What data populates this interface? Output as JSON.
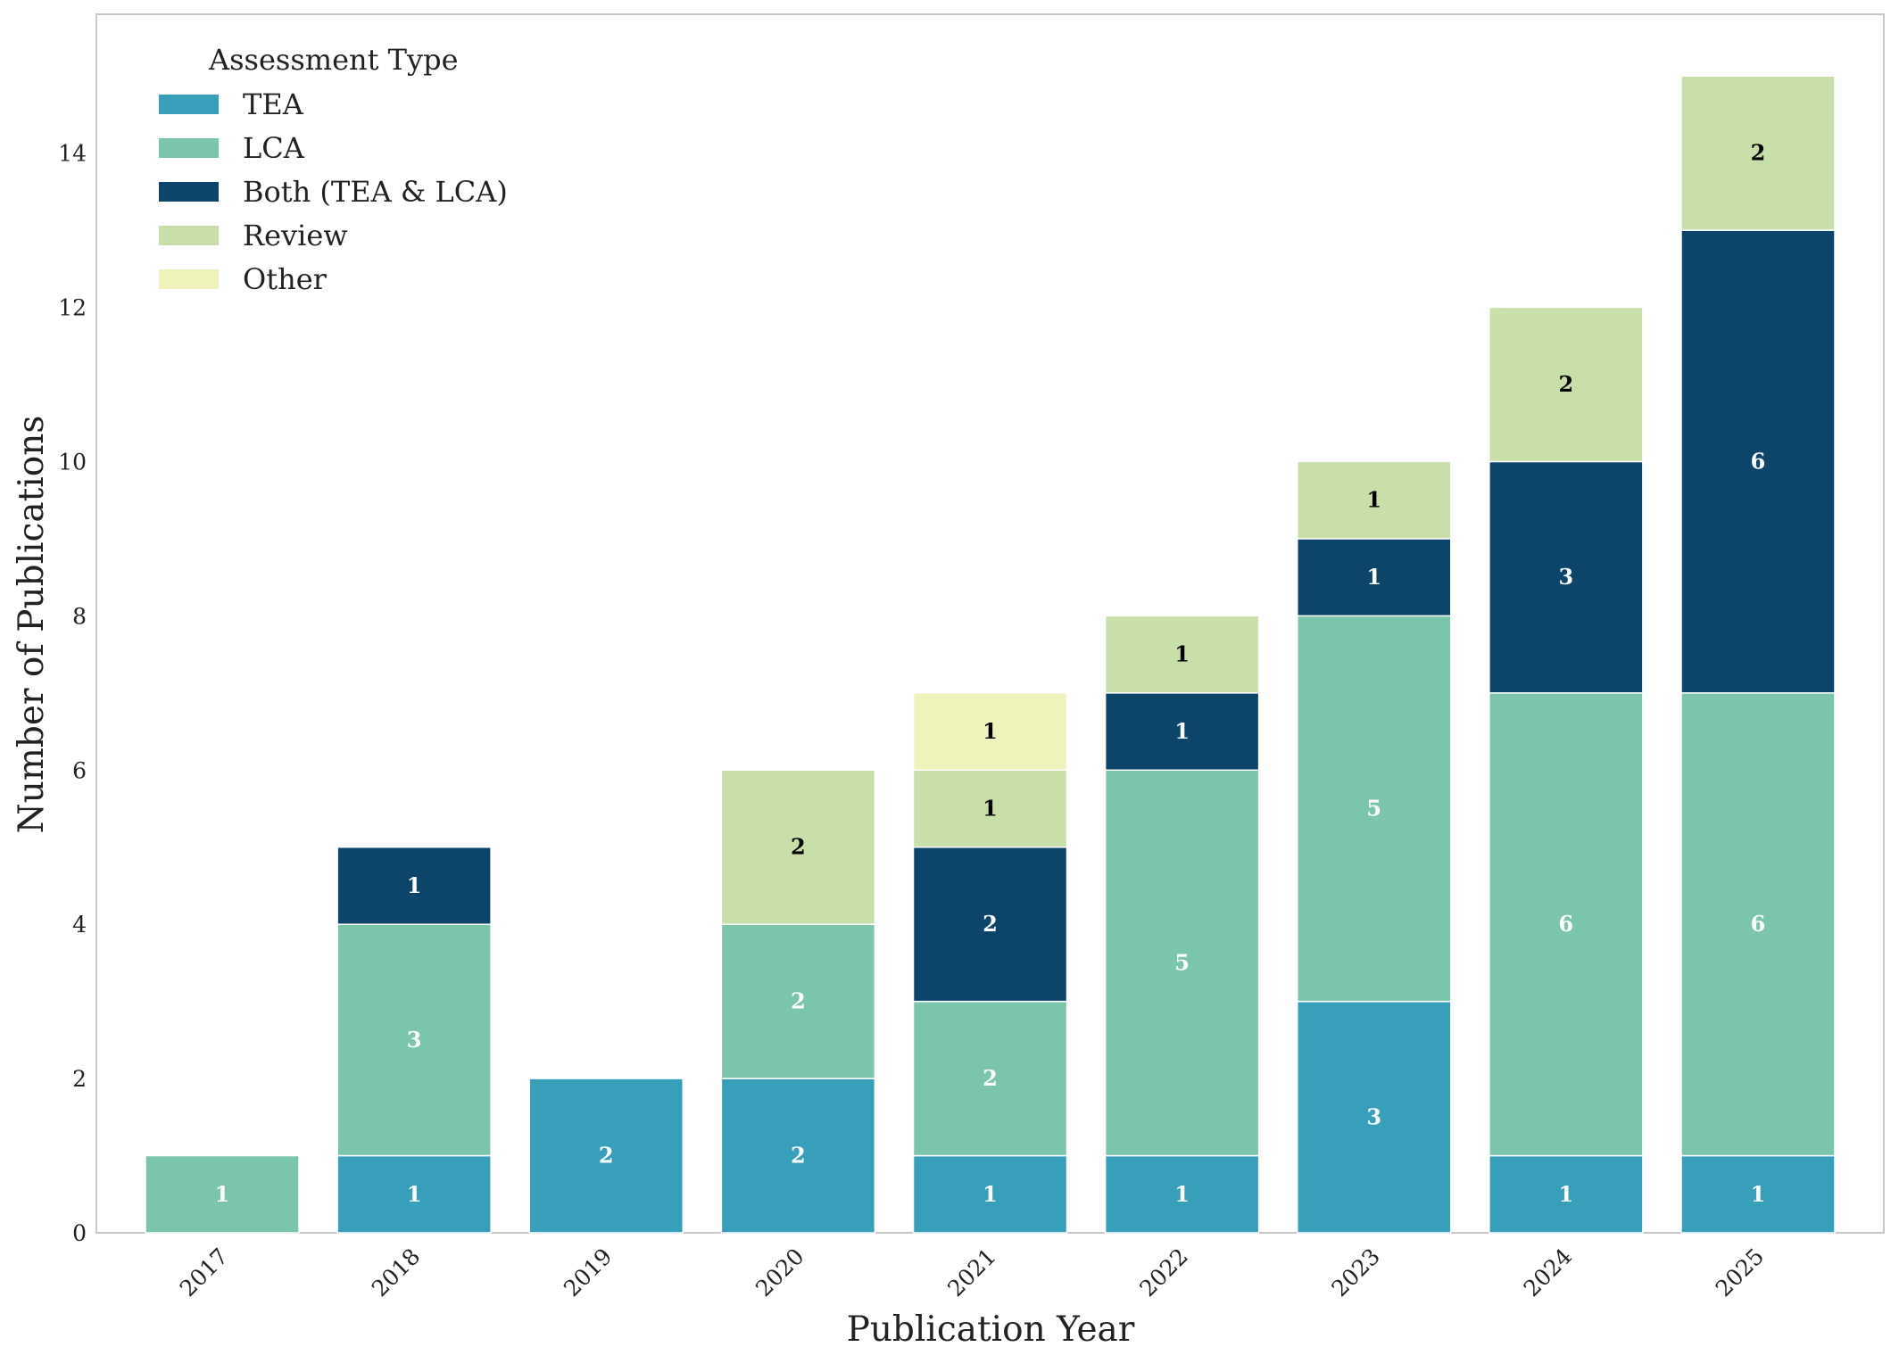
{
  "chart_data": {
    "type": "bar",
    "stacked": true,
    "title": "",
    "xlabel": "Publication Year",
    "ylabel": "Number of Publications",
    "categories": [
      "2017",
      "2018",
      "2019",
      "2020",
      "2021",
      "2022",
      "2023",
      "2024",
      "2025"
    ],
    "ylim": [
      0,
      15.8
    ],
    "yticks": [
      0,
      2,
      4,
      6,
      8,
      10,
      12,
      14
    ],
    "grid": false,
    "legend": {
      "title": "Assessment Type",
      "placement": "top-left"
    },
    "series": [
      {
        "name": "TEA",
        "color": "#379fba",
        "label_color": "#ffffff",
        "values": [
          0,
          1,
          2,
          2,
          1,
          1,
          3,
          1,
          1
        ]
      },
      {
        "name": "LCA",
        "color": "#7bc6ab",
        "label_color": "#ffffff",
        "values": [
          1,
          3,
          0,
          2,
          2,
          5,
          5,
          6,
          6
        ]
      },
      {
        "name": "Both (TEA & LCA)",
        "color": "#0c4569",
        "label_color": "#ffffff",
        "values": [
          0,
          1,
          0,
          0,
          2,
          1,
          1,
          3,
          6
        ]
      },
      {
        "name": "Review",
        "color": "#c8dfa9",
        "label_color": "#000000",
        "values": [
          0,
          0,
          0,
          2,
          1,
          1,
          1,
          2,
          2
        ]
      },
      {
        "name": "Other",
        "color": "#f0f2bb",
        "label_color": "#000000",
        "values": [
          0,
          0,
          0,
          0,
          1,
          0,
          0,
          0,
          0
        ]
      }
    ]
  }
}
